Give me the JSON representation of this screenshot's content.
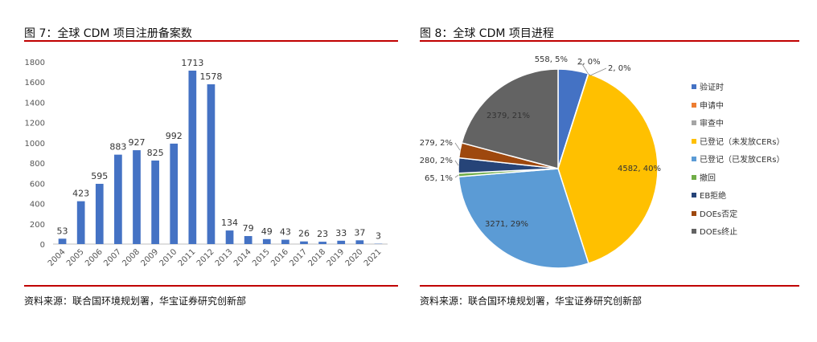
{
  "fig7": {
    "title": "图 7：全球 CDM 项目注册备案数",
    "source": "资料来源：联合国环境规划署，华宝证券研究创新部"
  },
  "fig8": {
    "title": "图 8：全球 CDM 项目进程",
    "source": "资料来源：联合国环境规划署，华宝证券研究创新部"
  },
  "colors": {
    "accent_red": "#c00000",
    "bar_blue": "#4472c4"
  },
  "chart_data": [
    {
      "type": "bar",
      "title": "",
      "xlabel": "",
      "ylabel": "",
      "categories": [
        "2004",
        "2005",
        "2006",
        "2007",
        "2008",
        "2009",
        "2010",
        "2011",
        "2012",
        "2013",
        "2014",
        "2015",
        "2016",
        "2017",
        "2018",
        "2019",
        "2020",
        "2021"
      ],
      "values": [
        53,
        423,
        595,
        883,
        927,
        825,
        992,
        1713,
        1578,
        134,
        79,
        49,
        43,
        26,
        23,
        33,
        37,
        3
      ],
      "ylim": [
        0,
        1800
      ],
      "yticks": [
        0,
        200,
        400,
        600,
        800,
        1000,
        1200,
        1400,
        1600,
        1800
      ],
      "grid": false,
      "color": "#4472c4"
    },
    {
      "type": "pie",
      "title": "",
      "legend_position": "right",
      "slices": [
        {
          "name": "验证时",
          "value": 558,
          "label": "558, 5%",
          "color": "#4472c4"
        },
        {
          "name": "申请中",
          "value": 2,
          "label": "2, 0%",
          "color": "#ed7d31"
        },
        {
          "name": "审查中",
          "value": 2,
          "label": "2, 0%",
          "color": "#a5a5a5"
        },
        {
          "name": "已登记（未发放CERs）",
          "value": 4582,
          "label": "4582, 40%",
          "color": "#ffc000"
        },
        {
          "name": "已登记（已发放CERs）",
          "value": 3271,
          "label": "3271, 29%",
          "color": "#5b9bd5"
        },
        {
          "name": "撤回",
          "value": 65,
          "label": "65, 1%",
          "color": "#70ad47"
        },
        {
          "name": "EB拒绝",
          "value": 280,
          "label": "280, 2%",
          "color": "#264478"
        },
        {
          "name": "DOEs否定",
          "value": 279,
          "label": "279, 2%",
          "color": "#9e480e"
        },
        {
          "name": "DOEs终止",
          "value": 2379,
          "label": "2379, 21%",
          "color": "#636363"
        }
      ]
    }
  ]
}
